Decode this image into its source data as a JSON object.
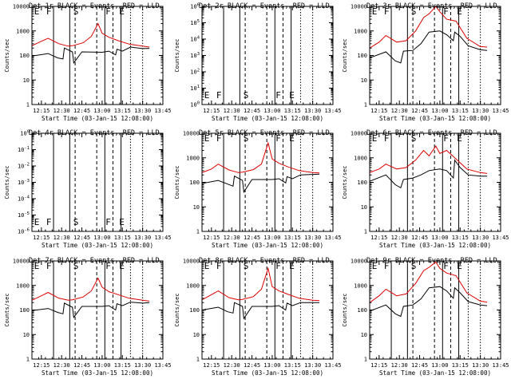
{
  "figure": {
    "ylabel": "Counts/sec",
    "xlabel": "Start Time (03-Jan-15 12:08:00)"
  },
  "chart_data": [
    {
      "type": "line",
      "title": "Det 1r BLACK = Events, RED = LLD",
      "xlabel": "Start Time (03-Jan-15 12:08:00)",
      "ylabel": "Counts/sec",
      "scale": "log",
      "xlim": [
        "12:08",
        "13:45"
      ],
      "ylim": [
        1,
        10000
      ],
      "x_ticks": [
        "12:15",
        "12:30",
        "12:45",
        "13:00",
        "13:15",
        "13:30",
        "13:45"
      ],
      "y_ticks": [
        "1",
        "10",
        "100",
        "1000",
        "10000"
      ],
      "markers": [
        "E",
        "F",
        "S",
        "F",
        "E"
      ],
      "series": [
        {
          "color": "#000000",
          "x": [
            "12:08",
            "12:20",
            "12:27",
            "12:31",
            "12:32",
            "12:38",
            "12:39",
            "12:45",
            "13:00",
            "13:05",
            "13:10",
            "13:11",
            "13:15",
            "13:21",
            "13:30",
            "13:35"
          ],
          "y": [
            95,
            120,
            80,
            72,
            200,
            140,
            50,
            140,
            135,
            150,
            105,
            180,
            150,
            220,
            190,
            195
          ]
        },
        {
          "color": "#dd0000",
          "x": [
            "12:08",
            "12:15",
            "12:20",
            "12:28",
            "12:35",
            "12:38",
            "12:46",
            "12:52",
            "12:57",
            "13:00",
            "13:05",
            "13:12",
            "13:20",
            "13:30",
            "13:35"
          ],
          "y": [
            250,
            380,
            500,
            300,
            240,
            250,
            330,
            600,
            2000,
            800,
            550,
            400,
            290,
            240,
            220
          ]
        }
      ]
    },
    {
      "type": "line",
      "title": "Det 2r BLACK = Events, RED = LLD",
      "xlabel": "Start Time (03-Jan-15 12:08:00)",
      "ylabel": "Counts/sec",
      "scale": "log",
      "xlim": [
        "12:08",
        "13:45"
      ],
      "ylim": [
        1,
        1000000
      ],
      "x_ticks": [
        "12:15",
        "12:30",
        "12:45",
        "13:00",
        "13:15",
        "13:30",
        "13:45"
      ],
      "y_ticks": [
        "10^0",
        "10^1",
        "10^2",
        "10^3",
        "10^4",
        "10^5",
        "10^6"
      ],
      "markers": [
        "E",
        "F",
        "S",
        "F",
        "E"
      ],
      "series": []
    },
    {
      "type": "line",
      "title": "Det 3r BLACK = Events, RED = LLD",
      "xlabel": "Start Time (03-Jan-15 12:08:00)",
      "ylabel": "Counts/sec",
      "scale": "log",
      "xlim": [
        "12:08",
        "13:45"
      ],
      "ylim": [
        1,
        10000
      ],
      "x_ticks": [
        "12:15",
        "12:30",
        "12:45",
        "13:00",
        "13:15",
        "13:30",
        "13:45"
      ],
      "y_ticks": [
        "1",
        "10",
        "100",
        "1000",
        "10000"
      ],
      "markers": [
        "E",
        "F",
        "S",
        "F",
        "E"
      ],
      "series": [
        {
          "color": "#000000",
          "x": [
            "12:08",
            "12:20",
            "12:27",
            "12:31",
            "12:33",
            "12:40",
            "12:46",
            "12:52",
            "13:00",
            "13:05",
            "13:10",
            "13:11",
            "13:15",
            "13:21",
            "13:30",
            "13:35"
          ],
          "y": [
            80,
            140,
            60,
            50,
            150,
            160,
            300,
            900,
            1000,
            700,
            400,
            900,
            600,
            250,
            170,
            160
          ]
        },
        {
          "color": "#dd0000",
          "x": [
            "12:08",
            "12:15",
            "12:20",
            "12:28",
            "12:35",
            "12:42",
            "12:48",
            "12:52",
            "12:57",
            "13:00",
            "13:05",
            "13:12",
            "13:20",
            "13:30",
            "13:35"
          ],
          "y": [
            200,
            350,
            650,
            350,
            400,
            1000,
            3500,
            5000,
            10000,
            6000,
            3000,
            2500,
            500,
            230,
            220
          ]
        }
      ]
    },
    {
      "type": "line",
      "title": "Det 4r BLACK = Events, RED = LLD",
      "xlabel": "Start Time (03-Jan-15 12:08:00)",
      "ylabel": "Counts/sec",
      "scale": "log",
      "xlim": [
        "12:08",
        "13:45"
      ],
      "ylim": [
        1e-06,
        1
      ],
      "x_ticks": [
        "12:15",
        "12:30",
        "12:45",
        "13:00",
        "13:15",
        "13:30",
        "13:45"
      ],
      "y_ticks": [
        "10^-6",
        "10^-5",
        "10^-4",
        "10^-3",
        "10^-2",
        "10^-1",
        "10^0"
      ],
      "markers": [
        "E",
        "F",
        "S",
        "F",
        "E"
      ],
      "series": []
    },
    {
      "type": "line",
      "title": "Det 5r BLACK = Events, RED = LLD",
      "xlabel": "Start Time (03-Jan-15 12:08:00)",
      "ylabel": "Counts/sec",
      "scale": "log",
      "xlim": [
        "12:08",
        "13:45"
      ],
      "ylim": [
        1,
        10000
      ],
      "x_ticks": [
        "12:15",
        "12:30",
        "12:45",
        "13:00",
        "13:15",
        "13:30",
        "13:45"
      ],
      "y_ticks": [
        "1",
        "10",
        "100",
        "1000",
        "10000"
      ],
      "markers": [
        "E",
        "F",
        "S",
        "F",
        "E"
      ],
      "series": [
        {
          "color": "#000000",
          "x": [
            "12:08",
            "12:20",
            "12:27",
            "12:31",
            "12:32",
            "12:38",
            "12:39",
            "12:45",
            "13:00",
            "13:05",
            "13:10",
            "13:11",
            "13:15",
            "13:21",
            "13:30",
            "13:35"
          ],
          "y": [
            90,
            120,
            85,
            70,
            180,
            120,
            40,
            130,
            130,
            140,
            95,
            170,
            140,
            200,
            210,
            215
          ]
        },
        {
          "color": "#dd0000",
          "x": [
            "12:08",
            "12:15",
            "12:20",
            "12:28",
            "12:35",
            "12:38",
            "12:46",
            "12:52",
            "12:57",
            "13:00",
            "13:05",
            "13:12",
            "13:20",
            "13:30",
            "13:35"
          ],
          "y": [
            250,
            350,
            550,
            320,
            250,
            260,
            330,
            550,
            4000,
            900,
            600,
            420,
            300,
            250,
            240
          ]
        }
      ]
    },
    {
      "type": "line",
      "title": "Det 6r BLACK = Events, RED = LLD",
      "xlabel": "Start Time (03-Jan-15 12:08:00)",
      "ylabel": "Counts/sec",
      "scale": "log",
      "xlim": [
        "12:08",
        "13:45"
      ],
      "ylim": [
        1,
        10000
      ],
      "x_ticks": [
        "12:15",
        "12:30",
        "12:45",
        "13:00",
        "13:15",
        "13:30",
        "13:45"
      ],
      "y_ticks": [
        "1",
        "10",
        "100",
        "1000",
        "10000"
      ],
      "markers": [
        "E",
        "F",
        "S",
        "F",
        "E"
      ],
      "series": [
        {
          "color": "#000000",
          "x": [
            "12:08",
            "12:20",
            "12:27",
            "12:31",
            "12:33",
            "12:40",
            "12:46",
            "12:52",
            "13:00",
            "13:05",
            "13:10",
            "13:11",
            "13:15",
            "13:21",
            "13:30",
            "13:35"
          ],
          "y": [
            110,
            200,
            80,
            60,
            130,
            150,
            200,
            300,
            350,
            300,
            150,
            800,
            400,
            200,
            180,
            180
          ]
        },
        {
          "color": "#dd0000",
          "x": [
            "12:08",
            "12:15",
            "12:20",
            "12:28",
            "12:35",
            "12:42",
            "12:48",
            "12:52",
            "12:57",
            "13:00",
            "13:05",
            "13:12",
            "13:20",
            "13:30",
            "13:35"
          ],
          "y": [
            250,
            350,
            550,
            350,
            400,
            800,
            2000,
            1200,
            3000,
            1500,
            2000,
            900,
            350,
            250,
            230
          ]
        }
      ]
    },
    {
      "type": "line",
      "title": "Det 7r BLACK = Events, RED = LLD",
      "xlabel": "Start Time (03-Jan-15 12:08:00)",
      "ylabel": "Counts/sec",
      "scale": "log",
      "xlim": [
        "12:08",
        "13:45"
      ],
      "ylim": [
        1,
        10000
      ],
      "x_ticks": [
        "12:15",
        "12:30",
        "12:45",
        "13:00",
        "13:15",
        "13:30",
        "13:45"
      ],
      "y_ticks": [
        "1",
        "10",
        "100",
        "1000",
        "10000"
      ],
      "markers": [
        "E",
        "F",
        "S",
        "F",
        "E"
      ],
      "series": [
        {
          "color": "#000000",
          "x": [
            "12:08",
            "12:20",
            "12:27",
            "12:31",
            "12:32",
            "12:38",
            "12:39",
            "12:45",
            "13:00",
            "13:05",
            "13:10",
            "13:11",
            "13:15",
            "13:21",
            "13:30",
            "13:35"
          ],
          "y": [
            95,
            115,
            80,
            70,
            190,
            130,
            50,
            140,
            140,
            150,
            100,
            180,
            150,
            210,
            190,
            200
          ]
        },
        {
          "color": "#dd0000",
          "x": [
            "12:08",
            "12:15",
            "12:20",
            "12:28",
            "12:35",
            "12:38",
            "12:46",
            "12:52",
            "12:57",
            "13:00",
            "13:05",
            "13:12",
            "13:20",
            "13:30",
            "13:35"
          ],
          "y": [
            250,
            380,
            520,
            300,
            250,
            260,
            340,
            600,
            2000,
            850,
            560,
            420,
            300,
            250,
            230
          ]
        }
      ]
    },
    {
      "type": "line",
      "title": "Det 8r BLACK = Events, RED = LLD",
      "xlabel": "Start Time (03-Jan-15 12:08:00)",
      "ylabel": "Counts/sec",
      "scale": "log",
      "xlim": [
        "12:08",
        "13:45"
      ],
      "ylim": [
        1,
        10000
      ],
      "x_ticks": [
        "12:15",
        "12:30",
        "12:45",
        "13:00",
        "13:15",
        "13:30",
        "13:45"
      ],
      "y_ticks": [
        "1",
        "10",
        "100",
        "1000",
        "10000"
      ],
      "markers": [
        "E",
        "F",
        "S",
        "F",
        "E"
      ],
      "series": [
        {
          "color": "#000000",
          "x": [
            "12:08",
            "12:20",
            "12:27",
            "12:31",
            "12:32",
            "12:38",
            "12:39",
            "12:45",
            "13:00",
            "13:05",
            "13:10",
            "13:11",
            "13:15",
            "13:21",
            "13:30",
            "13:35"
          ],
          "y": [
            100,
            130,
            85,
            75,
            200,
            140,
            45,
            140,
            140,
            150,
            100,
            190,
            150,
            200,
            200,
            200
          ]
        },
        {
          "color": "#dd0000",
          "x": [
            "12:08",
            "12:15",
            "12:20",
            "12:28",
            "12:35",
            "12:38",
            "12:46",
            "12:52",
            "12:57",
            "13:00",
            "13:05",
            "13:12",
            "13:20",
            "13:30",
            "13:35"
          ],
          "y": [
            260,
            420,
            600,
            320,
            260,
            270,
            350,
            700,
            5000,
            900,
            600,
            430,
            300,
            250,
            240
          ]
        }
      ]
    },
    {
      "type": "line",
      "title": "Det 9r BLACK = Events, RED = LLD",
      "xlabel": "Start Time (03-Jan-15 12:08:00)",
      "ylabel": "Counts/sec",
      "scale": "log",
      "xlim": [
        "12:08",
        "13:45"
      ],
      "ylim": [
        1,
        10000
      ],
      "x_ticks": [
        "12:15",
        "12:30",
        "12:45",
        "13:00",
        "13:15",
        "13:30",
        "13:45"
      ],
      "y_ticks": [
        "1",
        "10",
        "100",
        "1000",
        "10000"
      ],
      "markers": [
        "E",
        "F",
        "S",
        "F",
        "E"
      ],
      "series": [
        {
          "color": "#000000",
          "x": [
            "12:08",
            "12:20",
            "12:27",
            "12:31",
            "12:33",
            "12:40",
            "12:46",
            "12:52",
            "13:00",
            "13:05",
            "13:10",
            "13:11",
            "13:15",
            "13:21",
            "13:30",
            "13:35"
          ],
          "y": [
            90,
            160,
            70,
            55,
            140,
            160,
            280,
            800,
            900,
            600,
            300,
            800,
            500,
            220,
            160,
            150
          ]
        },
        {
          "color": "#dd0000",
          "x": [
            "12:08",
            "12:15",
            "12:20",
            "12:28",
            "12:35",
            "12:42",
            "12:48",
            "12:52",
            "12:57",
            "13:00",
            "13:05",
            "13:12",
            "13:20",
            "13:30",
            "13:35"
          ],
          "y": [
            200,
            380,
            700,
            380,
            450,
            1200,
            4000,
            5500,
            9000,
            5000,
            3200,
            2500,
            500,
            230,
            210
          ]
        }
      ]
    }
  ]
}
